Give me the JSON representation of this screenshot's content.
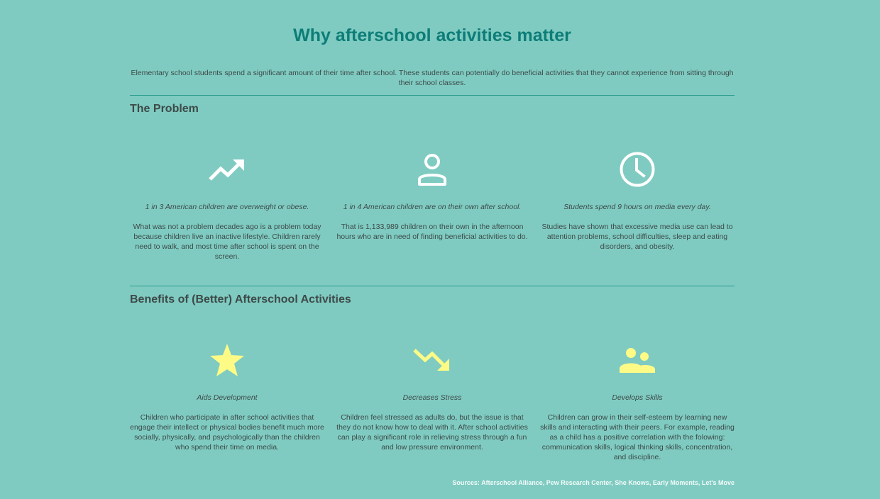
{
  "title": "Why afterschool activities matter",
  "intro": "Elementary school students spend a significant amount of their time after school. These students can potentially do beneficial activities that they cannot experience from sitting through their school classes.",
  "problem": {
    "heading": "The Problem",
    "icon_color": "#ffffff",
    "items": [
      {
        "icon": "trending-up-icon",
        "stat": "1 in 3 American children are overweight or obese.",
        "text": "What was not a problem decades ago is a problem today because children live an inactive lifestyle. Children rarely need to walk, and most time after school is spent on the screen."
      },
      {
        "icon": "person-icon",
        "stat": "1 in 4 American children are on their own after school.",
        "text": "That is 1,133,989 children on their own in the afternoon hours who are in need of finding beneficial activities to do."
      },
      {
        "icon": "clock-icon",
        "stat": "Students spend 9 hours on media every day.",
        "text": "Studies have shown that excessive media use can lead to attention problems, school difficulties, sleep and eating disorders, and obesity."
      }
    ]
  },
  "benefits": {
    "heading": "Benefits of (Better) Afterschool Activities",
    "icon_color": "#fdfb86",
    "items": [
      {
        "icon": "star-icon",
        "stat": "Aids Development",
        "text": "Children who participate in after school activities that engage their intellect or physical bodies benefit much more socially, physically, and psychologically than the children who spend their time on media."
      },
      {
        "icon": "trending-down-icon",
        "stat": "Decreases Stress",
        "text": "Children feel stressed as adults do, but the issue is that they do not know how to deal with it. After school activities can play a significant role in relieving stress through a fun and low pressure environment."
      },
      {
        "icon": "people-icon",
        "stat": "Develops Skills",
        "text": "Children can grow in their self-esteem by learning new skills and interacting with their peers. For example, reading as a child has a positive correlation with the folowing: communication skills, logical thinking skills, concentration, and discipline."
      }
    ]
  },
  "sources": "Sources: Afterschool Alliance, Pew Research Center, She Knows, Early Moments, Let's Move"
}
